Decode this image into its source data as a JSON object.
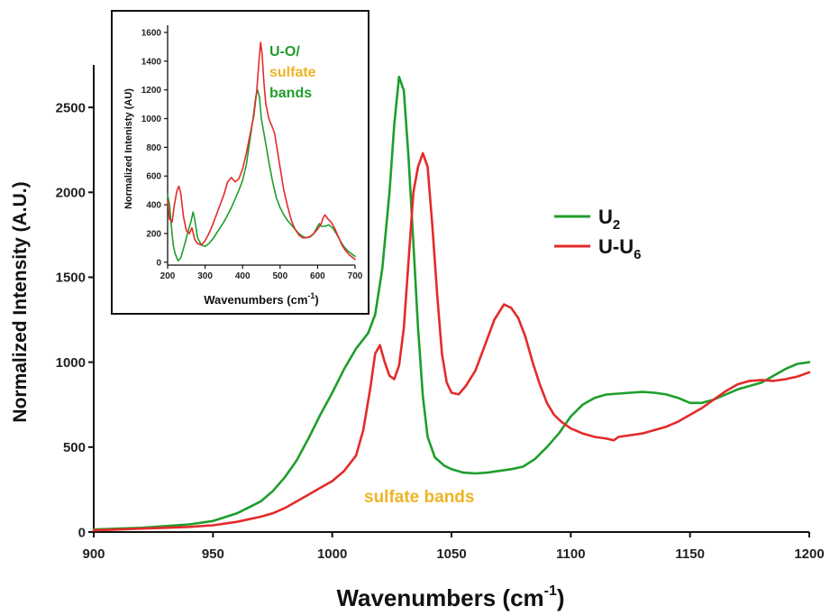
{
  "chart_data": [
    {
      "type": "line",
      "xlabel": "Wavenumbers (cm",
      "xlabel_sup": "-1",
      "xlabel_end": ")",
      "ylabel": "Normalized Intensity (A.U.)",
      "xlim": [
        900,
        1200
      ],
      "ylim": [
        0,
        2750
      ],
      "xticks": [
        "900",
        "950",
        "1000",
        "1050",
        "1100",
        "1150",
        "1200"
      ],
      "yticks": [
        "0",
        "500",
        "1000",
        "1500",
        "2000",
        "2500"
      ],
      "legend_position": "right",
      "annotation": {
        "text": "sulfate bands",
        "color": "#f0b323"
      },
      "series": [
        {
          "name": "U",
          "name_sub": "2",
          "color": "#1f9e2c",
          "points": [
            [
              900,
              15
            ],
            [
              910,
              20
            ],
            [
              920,
              25
            ],
            [
              930,
              35
            ],
            [
              940,
              45
            ],
            [
              950,
              65
            ],
            [
              960,
              110
            ],
            [
              970,
              180
            ],
            [
              975,
              240
            ],
            [
              980,
              320
            ],
            [
              985,
              420
            ],
            [
              990,
              550
            ],
            [
              995,
              690
            ],
            [
              1000,
              820
            ],
            [
              1005,
              960
            ],
            [
              1010,
              1080
            ],
            [
              1015,
              1170
            ],
            [
              1018,
              1280
            ],
            [
              1021,
              1550
            ],
            [
              1024,
              2000
            ],
            [
              1026,
              2400
            ],
            [
              1028,
              2680
            ],
            [
              1030,
              2600
            ],
            [
              1032,
              2200
            ],
            [
              1034,
              1700
            ],
            [
              1036,
              1200
            ],
            [
              1038,
              800
            ],
            [
              1040,
              560
            ],
            [
              1043,
              440
            ],
            [
              1047,
              390
            ],
            [
              1050,
              370
            ],
            [
              1055,
              350
            ],
            [
              1060,
              345
            ],
            [
              1065,
              350
            ],
            [
              1070,
              360
            ],
            [
              1075,
              370
            ],
            [
              1080,
              385
            ],
            [
              1085,
              430
            ],
            [
              1090,
              500
            ],
            [
              1095,
              580
            ],
            [
              1100,
              680
            ],
            [
              1105,
              750
            ],
            [
              1110,
              790
            ],
            [
              1115,
              810
            ],
            [
              1120,
              815
            ],
            [
              1125,
              820
            ],
            [
              1130,
              825
            ],
            [
              1135,
              820
            ],
            [
              1140,
              810
            ],
            [
              1145,
              790
            ],
            [
              1150,
              760
            ],
            [
              1155,
              760
            ],
            [
              1160,
              780
            ],
            [
              1165,
              810
            ],
            [
              1170,
              840
            ],
            [
              1175,
              860
            ],
            [
              1180,
              880
            ],
            [
              1185,
              920
            ],
            [
              1190,
              960
            ],
            [
              1195,
              990
            ],
            [
              1200,
              1000
            ]
          ]
        },
        {
          "name": "U-U",
          "name_sub": "6",
          "color": "#e42a2a",
          "points": [
            [
              900,
              10
            ],
            [
              910,
              15
            ],
            [
              920,
              20
            ],
            [
              930,
              25
            ],
            [
              940,
              30
            ],
            [
              950,
              40
            ],
            [
              960,
              60
            ],
            [
              970,
              90
            ],
            [
              975,
              110
            ],
            [
              980,
              140
            ],
            [
              985,
              180
            ],
            [
              990,
              220
            ],
            [
              995,
              260
            ],
            [
              1000,
              300
            ],
            [
              1005,
              360
            ],
            [
              1010,
              450
            ],
            [
              1013,
              600
            ],
            [
              1016,
              850
            ],
            [
              1018,
              1050
            ],
            [
              1020,
              1100
            ],
            [
              1022,
              1000
            ],
            [
              1024,
              920
            ],
            [
              1026,
              900
            ],
            [
              1028,
              980
            ],
            [
              1030,
              1200
            ],
            [
              1032,
              1600
            ],
            [
              1034,
              2000
            ],
            [
              1036,
              2150
            ],
            [
              1038,
              2230
            ],
            [
              1040,
              2150
            ],
            [
              1042,
              1800
            ],
            [
              1044,
              1400
            ],
            [
              1046,
              1050
            ],
            [
              1048,
              880
            ],
            [
              1050,
              820
            ],
            [
              1053,
              810
            ],
            [
              1056,
              860
            ],
            [
              1060,
              950
            ],
            [
              1064,
              1100
            ],
            [
              1068,
              1250
            ],
            [
              1072,
              1340
            ],
            [
              1075,
              1320
            ],
            [
              1078,
              1260
            ],
            [
              1081,
              1150
            ],
            [
              1084,
              1000
            ],
            [
              1087,
              870
            ],
            [
              1090,
              760
            ],
            [
              1093,
              690
            ],
            [
              1096,
              650
            ],
            [
              1100,
              610
            ],
            [
              1105,
              580
            ],
            [
              1110,
              560
            ],
            [
              1115,
              550
            ],
            [
              1118,
              540
            ],
            [
              1120,
              560
            ],
            [
              1125,
              570
            ],
            [
              1130,
              580
            ],
            [
              1135,
              600
            ],
            [
              1140,
              620
            ],
            [
              1145,
              650
            ],
            [
              1150,
              690
            ],
            [
              1155,
              730
            ],
            [
              1160,
              780
            ],
            [
              1165,
              830
            ],
            [
              1170,
              870
            ],
            [
              1175,
              890
            ],
            [
              1180,
              895
            ],
            [
              1185,
              890
            ],
            [
              1190,
              900
            ],
            [
              1195,
              915
            ],
            [
              1200,
              940
            ]
          ]
        }
      ]
    },
    {
      "type": "line",
      "xlabel": "Wavenumbers (cm",
      "xlabel_sup": "-1",
      "xlabel_end": ")",
      "ylabel": "Normalized Intenisty (AU)",
      "xlim": [
        200,
        700
      ],
      "ylim": [
        -20,
        1650
      ],
      "xticks": [
        "200",
        "300",
        "400",
        "500",
        "600",
        "700"
      ],
      "yticks": [
        "0",
        "200",
        "400",
        "600",
        "800",
        "1000",
        "1200",
        "1400",
        "1600"
      ],
      "annotation_lines": [
        {
          "text": "U-O/",
          "color": "#1f9e2c"
        },
        {
          "text": "sulfate",
          "color": "#f0b323"
        },
        {
          "text": "bands",
          "color": "#1f9e2c"
        }
      ],
      "series": [
        {
          "color": "#1f9e2c",
          "points": [
            [
              200,
              470
            ],
            [
              205,
              400
            ],
            [
              210,
              250
            ],
            [
              215,
              120
            ],
            [
              220,
              60
            ],
            [
              228,
              10
            ],
            [
              235,
              30
            ],
            [
              245,
              120
            ],
            [
              255,
              220
            ],
            [
              262,
              280
            ],
            [
              268,
              350
            ],
            [
              272,
              300
            ],
            [
              280,
              170
            ],
            [
              290,
              120
            ],
            [
              300,
              110
            ],
            [
              310,
              130
            ],
            [
              320,
              160
            ],
            [
              330,
              200
            ],
            [
              340,
              240
            ],
            [
              350,
              280
            ],
            [
              360,
              330
            ],
            [
              370,
              380
            ],
            [
              380,
              440
            ],
            [
              390,
              500
            ],
            [
              400,
              570
            ],
            [
              410,
              680
            ],
            [
              420,
              860
            ],
            [
              428,
              1000
            ],
            [
              435,
              1150
            ],
            [
              440,
              1200
            ],
            [
              445,
              1150
            ],
            [
              450,
              1000
            ],
            [
              460,
              850
            ],
            [
              470,
              700
            ],
            [
              480,
              560
            ],
            [
              490,
              450
            ],
            [
              500,
              380
            ],
            [
              510,
              330
            ],
            [
              520,
              290
            ],
            [
              530,
              260
            ],
            [
              540,
              230
            ],
            [
              550,
              200
            ],
            [
              560,
              180
            ],
            [
              570,
              170
            ],
            [
              580,
              175
            ],
            [
              590,
              200
            ],
            [
              600,
              250
            ],
            [
              605,
              270
            ],
            [
              610,
              250
            ],
            [
              620,
              250
            ],
            [
              630,
              260
            ],
            [
              640,
              240
            ],
            [
              650,
              200
            ],
            [
              660,
              150
            ],
            [
              670,
              110
            ],
            [
              680,
              80
            ],
            [
              690,
              60
            ],
            [
              700,
              40
            ]
          ]
        },
        {
          "color": "#e42a2a",
          "points": [
            [
              200,
              430
            ],
            [
              205,
              300
            ],
            [
              212,
              280
            ],
            [
              218,
              400
            ],
            [
              225,
              500
            ],
            [
              230,
              530
            ],
            [
              235,
              480
            ],
            [
              242,
              320
            ],
            [
              250,
              220
            ],
            [
              258,
              200
            ],
            [
              265,
              240
            ],
            [
              272,
              160
            ],
            [
              280,
              130
            ],
            [
              290,
              120
            ],
            [
              300,
              150
            ],
            [
              310,
              200
            ],
            [
              320,
              260
            ],
            [
              330,
              330
            ],
            [
              340,
              400
            ],
            [
              350,
              470
            ],
            [
              360,
              560
            ],
            [
              370,
              590
            ],
            [
              380,
              560
            ],
            [
              390,
              580
            ],
            [
              400,
              650
            ],
            [
              410,
              760
            ],
            [
              420,
              890
            ],
            [
              430,
              1020
            ],
            [
              438,
              1200
            ],
            [
              443,
              1380
            ],
            [
              448,
              1530
            ],
            [
              452,
              1450
            ],
            [
              457,
              1250
            ],
            [
              462,
              1100
            ],
            [
              470,
              1000
            ],
            [
              478,
              950
            ],
            [
              485,
              900
            ],
            [
              492,
              790
            ],
            [
              500,
              660
            ],
            [
              510,
              500
            ],
            [
              520,
              390
            ],
            [
              530,
              290
            ],
            [
              540,
              230
            ],
            [
              550,
              190
            ],
            [
              560,
              170
            ],
            [
              570,
              170
            ],
            [
              580,
              180
            ],
            [
              590,
              200
            ],
            [
              600,
              230
            ],
            [
              610,
              270
            ],
            [
              615,
              310
            ],
            [
              620,
              330
            ],
            [
              628,
              300
            ],
            [
              636,
              280
            ],
            [
              645,
              240
            ],
            [
              655,
              180
            ],
            [
              665,
              120
            ],
            [
              675,
              80
            ],
            [
              685,
              50
            ],
            [
              695,
              30
            ],
            [
              700,
              20
            ]
          ]
        }
      ]
    }
  ]
}
